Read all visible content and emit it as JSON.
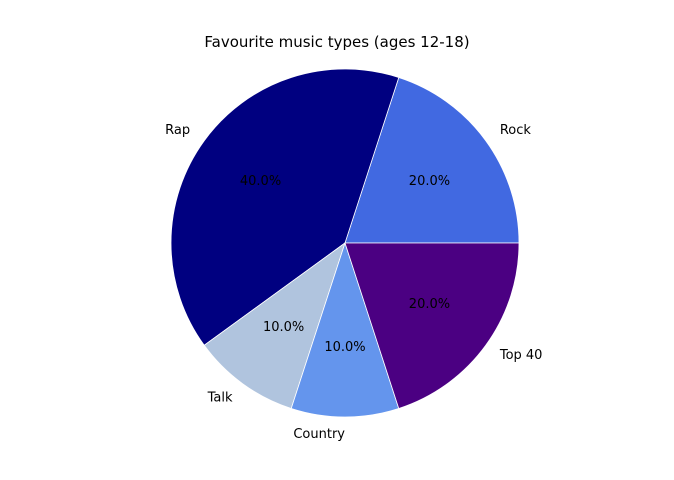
{
  "chart_data": {
    "type": "pie",
    "title": "Favourite music types (ages 12-18)",
    "slices": [
      {
        "label": "Rock",
        "value": 20,
        "pct_label": "20.0%",
        "color": "#4169E1"
      },
      {
        "label": "Rap",
        "value": 40,
        "pct_label": "40.0%",
        "color": "#000080"
      },
      {
        "label": "Talk",
        "value": 10,
        "pct_label": "10.0%",
        "color": "#B0C4DE"
      },
      {
        "label": "Country",
        "value": 10,
        "pct_label": "10.0%",
        "color": "#6495ED"
      },
      {
        "label": "Top 40",
        "value": 20,
        "pct_label": "20.0%",
        "color": "#4B0082"
      }
    ],
    "start_angle_deg": 0,
    "direction": "counterclockwise",
    "slice_edge_color": "#ffffff",
    "legend": "none"
  }
}
